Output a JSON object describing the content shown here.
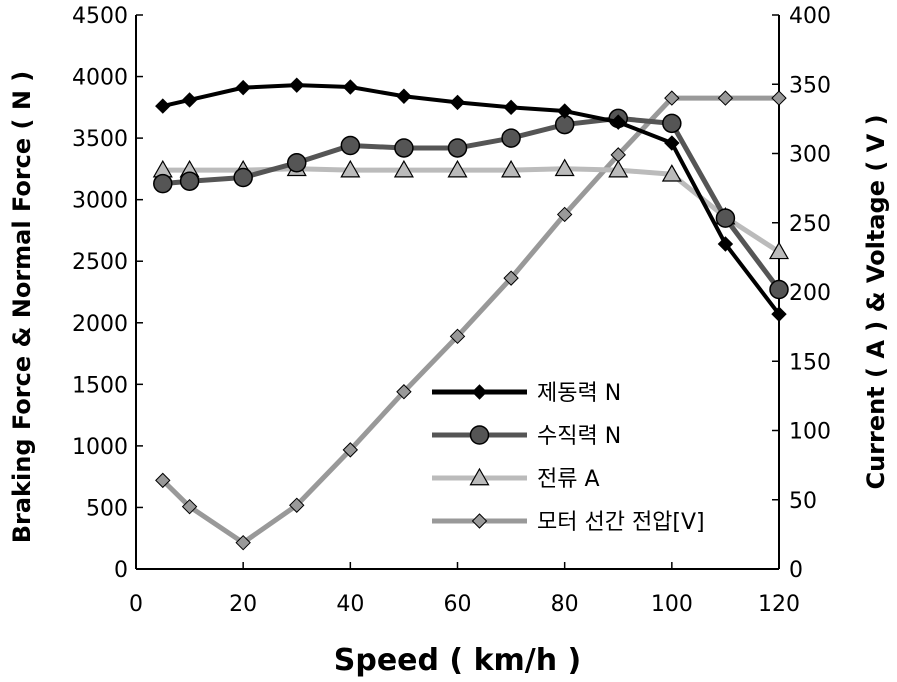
{
  "chart_data": {
    "type": "line",
    "xlabel": "Speed ( km/h )",
    "ylabel_left": "Braking Force &  Normal  Force ( N )",
    "ylabel_right": "Current ( A ) & Voltage ( V )",
    "xlim": [
      0,
      120
    ],
    "x_ticks": [
      "0",
      "20",
      "40",
      "60",
      "80",
      "100",
      "120"
    ],
    "ylim_left": [
      0,
      4500
    ],
    "y_ticks_left": [
      "0",
      "500",
      "1000",
      "1500",
      "2000",
      "2500",
      "3000",
      "3500",
      "4000",
      "4500"
    ],
    "ylim_right": [
      0,
      400
    ],
    "y_ticks_right": [
      "0",
      "50",
      "100",
      "150",
      "200",
      "250",
      "300",
      "350",
      "400"
    ],
    "grid": false,
    "legend_position": "center-right",
    "series": [
      {
        "name": "제동력 N",
        "axis": "left",
        "marker": "diamond",
        "color": "#000000",
        "x": [
          5,
          10,
          20,
          30,
          40,
          50,
          60,
          70,
          80,
          90,
          100,
          110,
          120
        ],
        "values": [
          3760,
          3810,
          3910,
          3930,
          3915,
          3840,
          3790,
          3750,
          3720,
          3630,
          3460,
          2640,
          2070
        ]
      },
      {
        "name": "수직력 N",
        "axis": "left",
        "marker": "circle",
        "color": "#555555",
        "x": [
          5,
          10,
          20,
          30,
          40,
          50,
          60,
          70,
          80,
          90,
          100,
          110,
          120
        ],
        "values": [
          3130,
          3150,
          3180,
          3300,
          3440,
          3420,
          3420,
          3500,
          3610,
          3660,
          3620,
          2850,
          2270
        ]
      },
      {
        "name": "전류 A",
        "axis": "right",
        "marker": "triangle",
        "color": "#bbbbbb",
        "x": [
          5,
          10,
          20,
          30,
          40,
          50,
          60,
          70,
          80,
          90,
          100,
          110,
          120
        ],
        "values": [
          288,
          288,
          288,
          289,
          288,
          288,
          288,
          288,
          289,
          288,
          285,
          254,
          229
        ]
      },
      {
        "name": "모터 선간 전압[V]",
        "axis": "right",
        "marker": "diamond",
        "color": "#999999",
        "x": [
          5,
          10,
          20,
          30,
          40,
          50,
          60,
          70,
          80,
          90,
          100,
          110,
          120
        ],
        "values": [
          64,
          45,
          19,
          46,
          86,
          128,
          168,
          210,
          256,
          299,
          340,
          340,
          340
        ]
      }
    ]
  }
}
